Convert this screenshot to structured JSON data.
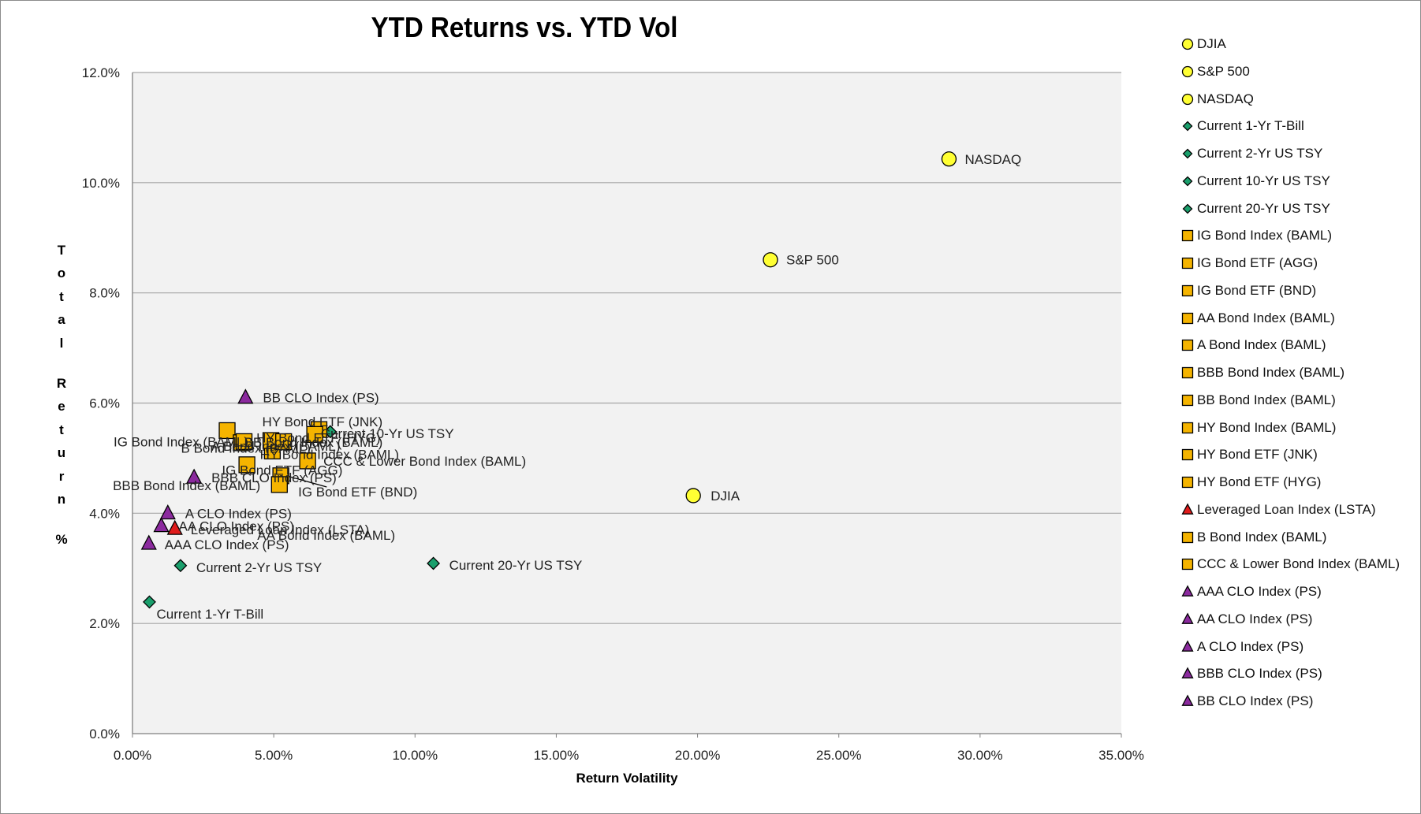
{
  "chart_data": {
    "type": "scatter",
    "title": "YTD Returns vs. YTD Vol",
    "xlabel": "Return Volatility",
    "ylabel": "Total Return %",
    "xlim": [
      0,
      0.35
    ],
    "ylim": [
      0,
      0.12
    ],
    "x_ticks": [
      "0.00%",
      "5.00%",
      "10.00%",
      "15.00%",
      "20.00%",
      "25.00%",
      "30.00%",
      "35.00%"
    ],
    "y_ticks": [
      "0.0%",
      "2.0%",
      "4.0%",
      "6.0%",
      "8.0%",
      "10.0%",
      "12.0%"
    ],
    "grid": "horizontal",
    "legend_position": "right",
    "colors": {
      "equity": "#ffff33",
      "treasury": "#1a9f6c",
      "bond": "#f5b400",
      "loan": "#e01b1b",
      "clo": "#8b2a9e",
      "plot_background": "#f2f2f2",
      "gridline": "#a6a6a6"
    },
    "series": [
      {
        "name": "DJIA",
        "marker": "circle",
        "group": "equity",
        "x": 0.1985,
        "y": 0.0432
      },
      {
        "name": "S&P 500",
        "marker": "circle",
        "group": "equity",
        "x": 0.2258,
        "y": 0.086
      },
      {
        "name": "NASDAQ",
        "marker": "circle",
        "group": "equity",
        "x": 0.289,
        "y": 0.1043
      },
      {
        "name": "Current 1-Yr T-Bill",
        "marker": "diamond",
        "group": "treasury",
        "x": 0.006,
        "y": 0.0239
      },
      {
        "name": "Current 2-Yr US TSY",
        "marker": "diamond",
        "group": "treasury",
        "x": 0.017,
        "y": 0.0305
      },
      {
        "name": "Current 10-Yr US TSY",
        "marker": "diamond",
        "group": "treasury",
        "x": 0.07,
        "y": 0.0548
      },
      {
        "name": "Current 20-Yr US TSY",
        "marker": "diamond",
        "group": "treasury",
        "x": 0.1065,
        "y": 0.0309
      },
      {
        "name": "IG Bond Index (BAML)",
        "marker": "square",
        "group": "bond",
        "x": 0.0335,
        "y": 0.055
      },
      {
        "name": "IG Bond ETF (AGG)",
        "marker": "square",
        "group": "bond",
        "x": 0.0495,
        "y": 0.0513
      },
      {
        "name": "IG Bond ETF (BND)",
        "marker": "square",
        "group": "bond",
        "x": 0.0525,
        "y": 0.0468
      },
      {
        "name": "AA Bond Index (BAML)",
        "marker": "square",
        "group": "bond",
        "x": 0.052,
        "y": 0.0452
      },
      {
        "name": "A Bond Index (BAML)",
        "marker": "square",
        "group": "bond",
        "x": 0.0385,
        "y": 0.0528
      },
      {
        "name": "BBB Bond Index (BAML)",
        "marker": "square",
        "group": "bond",
        "x": 0.0405,
        "y": 0.0488
      },
      {
        "name": "BB Bond Index (BAML)",
        "marker": "square",
        "group": "bond",
        "x": 0.049,
        "y": 0.0532
      },
      {
        "name": "HY Bond Index (BAML)",
        "marker": "square",
        "group": "bond",
        "x": 0.0535,
        "y": 0.053
      },
      {
        "name": "HY Bond ETF (JNK)",
        "marker": "square",
        "group": "bond",
        "x": 0.066,
        "y": 0.0552
      },
      {
        "name": "HY Bond ETF (HYG)",
        "marker": "square",
        "group": "bond",
        "x": 0.0645,
        "y": 0.0543
      },
      {
        "name": "Leveraged Loan Index (LSTA)",
        "marker": "triangle",
        "group": "loan",
        "x": 0.015,
        "y": 0.0372
      },
      {
        "name": "B Bond Index (BAML)",
        "marker": "square",
        "group": "bond",
        "x": 0.0395,
        "y": 0.053
      },
      {
        "name": "CCC & Lower Bond Index (BAML)",
        "marker": "square",
        "group": "bond",
        "x": 0.062,
        "y": 0.0495
      },
      {
        "name": "AAA CLO Index (PS)",
        "marker": "triangle",
        "group": "clo",
        "x": 0.0058,
        "y": 0.0345
      },
      {
        "name": "AA CLO Index (PS)",
        "marker": "triangle",
        "group": "clo",
        "x": 0.0102,
        "y": 0.0377
      },
      {
        "name": "A CLO Index (PS)",
        "marker": "triangle",
        "group": "clo",
        "x": 0.0125,
        "y": 0.04
      },
      {
        "name": "BBB CLO Index (PS)",
        "marker": "triangle",
        "group": "clo",
        "x": 0.0218,
        "y": 0.0465
      },
      {
        "name": "BB CLO Index (PS)",
        "marker": "triangle",
        "group": "clo",
        "x": 0.04,
        "y": 0.061
      }
    ]
  }
}
